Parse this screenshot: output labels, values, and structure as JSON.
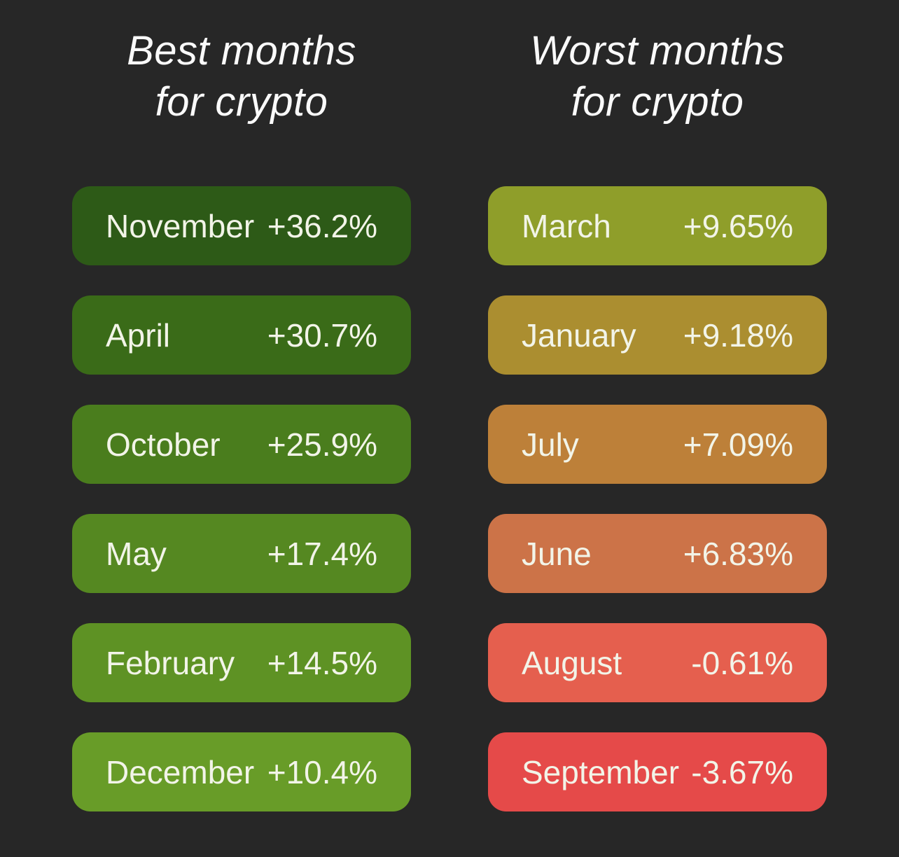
{
  "background_color": "#272727",
  "title_color": "#fafafa",
  "card_text_color": "#f2f4e8",
  "columns": [
    {
      "title_line1": "Best months",
      "title_line2": "for crypto",
      "cards": [
        {
          "month": "November",
          "value": "+36.2%",
          "color": "#2d5a17"
        },
        {
          "month": "April",
          "value": "+30.7%",
          "color": "#3a6b18"
        },
        {
          "month": "October",
          "value": "+25.9%",
          "color": "#4a7d1d"
        },
        {
          "month": "May",
          "value": "+17.4%",
          "color": "#558821"
        },
        {
          "month": "February",
          "value": "+14.5%",
          "color": "#5e9224"
        },
        {
          "month": "December",
          "value": "+10.4%",
          "color": "#689c28"
        }
      ]
    },
    {
      "title_line1": "Worst months",
      "title_line2": "for crypto",
      "cards": [
        {
          "month": "March",
          "value": "+9.65%",
          "color": "#8f9e2a"
        },
        {
          "month": "January",
          "value": "+9.18%",
          "color": "#ab8e30"
        },
        {
          "month": "July",
          "value": "+7.09%",
          "color": "#bd8039"
        },
        {
          "month": "June",
          "value": "+6.83%",
          "color": "#cc7348"
        },
        {
          "month": "August",
          "value": "-0.61%",
          "color": "#e55f4e"
        },
        {
          "month": "September",
          "value": "-3.67%",
          "color": "#e54a49"
        }
      ]
    }
  ],
  "chart_data": [
    {
      "type": "bar",
      "title": "Best months for crypto",
      "categories": [
        "November",
        "April",
        "October",
        "May",
        "February",
        "December"
      ],
      "values": [
        36.2,
        30.7,
        25.9,
        17.4,
        14.5,
        10.4
      ],
      "value_labels": [
        "+36.2%",
        "+30.7%",
        "+25.9%",
        "+17.4%",
        "+14.5%",
        "+10.4%"
      ],
      "unit": "%",
      "color_scale": [
        "#2d5a17",
        "#3a6b18",
        "#4a7d1d",
        "#558821",
        "#5e9224",
        "#689c28"
      ],
      "legend": "none",
      "sort": "descending"
    },
    {
      "type": "bar",
      "title": "Worst months for crypto",
      "categories": [
        "March",
        "January",
        "July",
        "June",
        "August",
        "September"
      ],
      "values": [
        9.65,
        9.18,
        7.09,
        6.83,
        -0.61,
        -3.67
      ],
      "value_labels": [
        "+9.65%",
        "+9.18%",
        "+7.09%",
        "+6.83%",
        "-0.61%",
        "-3.67%"
      ],
      "unit": "%",
      "color_scale": [
        "#8f9e2a",
        "#ab8e30",
        "#bd8039",
        "#cc7348",
        "#e55f4e",
        "#e54a49"
      ],
      "legend": "none",
      "sort": "descending"
    }
  ]
}
